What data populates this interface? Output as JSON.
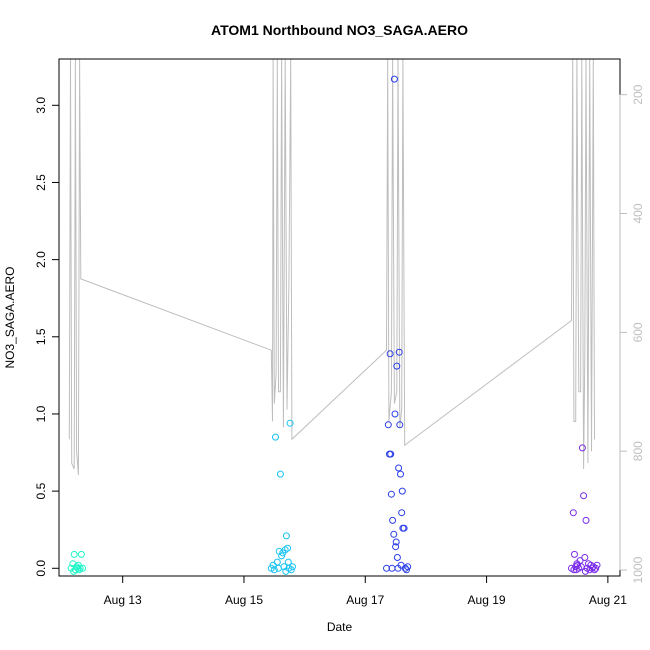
{
  "chart_data": {
    "type": "scatter",
    "title": "ATOM1 Northbound NO3_SAGA.AERO",
    "xlabel": "Date",
    "ylabel": "NO3_SAGA.AERO",
    "x_unit": "day of August",
    "xlim": [
      11.95,
      21.2
    ],
    "ylim": [
      -0.05,
      3.3
    ],
    "x_ticks": [
      {
        "value": 13,
        "label": "Aug 13"
      },
      {
        "value": 15,
        "label": "Aug 15"
      },
      {
        "value": 17,
        "label": "Aug 17"
      },
      {
        "value": 19,
        "label": "Aug 19"
      },
      {
        "value": 21,
        "label": "Aug 21"
      }
    ],
    "y_ticks": [
      {
        "value": 0.0,
        "label": "0.0"
      },
      {
        "value": 0.5,
        "label": "0.5"
      },
      {
        "value": 1.0,
        "label": "1.0"
      },
      {
        "value": 1.5,
        "label": "1.5"
      },
      {
        "value": 2.0,
        "label": "2.0"
      },
      {
        "value": 2.5,
        "label": "2.5"
      },
      {
        "value": 3.0,
        "label": "3.0"
      }
    ],
    "y2lim": [
      1010,
      140
    ],
    "y2_ticks": [
      {
        "value": 200,
        "label": "200"
      },
      {
        "value": 400,
        "label": "400"
      },
      {
        "value": 600,
        "label": "600"
      },
      {
        "value": 800,
        "label": "800"
      },
      {
        "value": 1000,
        "label": "1000"
      }
    ],
    "secondary_line_color": "#bebebe",
    "grid": false,
    "legend": "none",
    "series": [
      {
        "color": "#1cf5c8",
        "points": [
          [
            12.15,
            0.0
          ],
          [
            12.18,
            0.03
          ],
          [
            12.2,
            0.09
          ],
          [
            12.22,
            -0.01
          ],
          [
            12.24,
            0.01
          ],
          [
            12.26,
            0.0
          ],
          [
            12.28,
            -0.01
          ],
          [
            12.3,
            0.0
          ],
          [
            12.32,
            0.09
          ],
          [
            12.34,
            0.0
          ],
          [
            12.19,
            -0.02
          ],
          [
            12.27,
            0.02
          ]
        ]
      },
      {
        "color": "#17c3f2",
        "points": [
          [
            15.45,
            0.0
          ],
          [
            15.48,
            0.02
          ],
          [
            15.52,
            0.85
          ],
          [
            15.55,
            0.04
          ],
          [
            15.58,
            0.11
          ],
          [
            15.6,
            0.61
          ],
          [
            15.62,
            0.08
          ],
          [
            15.64,
            0.1
          ],
          [
            15.66,
            0.01
          ],
          [
            15.68,
            0.12
          ],
          [
            15.7,
            0.21
          ],
          [
            15.72,
            0.13
          ],
          [
            15.74,
            0.0
          ],
          [
            15.76,
            0.94
          ],
          [
            15.78,
            -0.01
          ],
          [
            15.8,
            0.01
          ],
          [
            15.5,
            -0.01
          ],
          [
            15.57,
            0.0
          ],
          [
            15.69,
            -0.02
          ],
          [
            15.73,
            0.04
          ]
        ]
      },
      {
        "color": "#2a3ee8",
        "points": [
          [
            17.35,
            0.0
          ],
          [
            17.38,
            0.93
          ],
          [
            17.4,
            0.74
          ],
          [
            17.41,
            1.39
          ],
          [
            17.42,
            0.74
          ],
          [
            17.43,
            0.48
          ],
          [
            17.45,
            0.31
          ],
          [
            17.47,
            0.22
          ],
          [
            17.48,
            3.17
          ],
          [
            17.49,
            1.0
          ],
          [
            17.5,
            0.14
          ],
          [
            17.51,
            0.17
          ],
          [
            17.52,
            1.31
          ],
          [
            17.53,
            0.07
          ],
          [
            17.54,
            0.0
          ],
          [
            17.55,
            0.65
          ],
          [
            17.56,
            1.4
          ],
          [
            17.57,
            0.93
          ],
          [
            17.58,
            0.61
          ],
          [
            17.6,
            0.36
          ],
          [
            17.61,
            0.5
          ],
          [
            17.62,
            0.26
          ],
          [
            17.64,
            0.26
          ],
          [
            17.66,
            0.0
          ],
          [
            17.68,
            -0.01
          ],
          [
            17.7,
            0.01
          ],
          [
            17.44,
            0.0
          ],
          [
            17.59,
            0.02
          ]
        ]
      },
      {
        "color": "#7a2ae8",
        "points": [
          [
            20.4,
            0.0
          ],
          [
            20.43,
            0.36
          ],
          [
            20.45,
            0.09
          ],
          [
            20.47,
            0.01
          ],
          [
            20.48,
            -0.01
          ],
          [
            20.5,
            0.02
          ],
          [
            20.52,
            0.0
          ],
          [
            20.54,
            0.05
          ],
          [
            20.56,
            0.01
          ],
          [
            20.58,
            0.78
          ],
          [
            20.6,
            0.47
          ],
          [
            20.62,
            0.07
          ],
          [
            20.64,
            0.31
          ],
          [
            20.66,
            0.0
          ],
          [
            20.68,
            0.03
          ],
          [
            20.7,
            -0.01
          ],
          [
            20.72,
            0.02
          ],
          [
            20.74,
            0.0
          ],
          [
            20.76,
            0.01
          ],
          [
            20.78,
            -0.01
          ],
          [
            20.8,
            0.0
          ],
          [
            20.82,
            0.02
          ],
          [
            20.44,
            -0.01
          ],
          [
            20.49,
            0.03
          ],
          [
            20.63,
            -0.02
          ]
        ]
      }
    ],
    "secondary_line": [
      [
        12.12,
        780
      ],
      [
        12.14,
        140
      ],
      [
        12.16,
        820
      ],
      [
        12.2,
        830
      ],
      [
        12.22,
        140
      ],
      [
        12.24,
        800
      ],
      [
        12.27,
        840
      ],
      [
        12.29,
        140
      ],
      [
        12.31,
        510
      ],
      [
        15.45,
        630
      ],
      [
        15.47,
        750
      ],
      [
        15.48,
        140
      ],
      [
        15.5,
        720
      ],
      [
        15.53,
        670
      ],
      [
        15.55,
        140
      ],
      [
        15.57,
        700
      ],
      [
        15.6,
        700
      ],
      [
        15.62,
        140
      ],
      [
        15.65,
        760
      ],
      [
        15.68,
        140
      ],
      [
        15.71,
        730
      ],
      [
        15.74,
        520
      ],
      [
        15.77,
        140
      ],
      [
        15.79,
        780
      ],
      [
        17.35,
        630
      ],
      [
        17.37,
        140
      ],
      [
        17.39,
        750
      ],
      [
        17.43,
        700
      ],
      [
        17.45,
        140
      ],
      [
        17.48,
        720
      ],
      [
        17.52,
        700
      ],
      [
        17.54,
        140
      ],
      [
        17.57,
        760
      ],
      [
        17.6,
        730
      ],
      [
        17.62,
        140
      ],
      [
        17.65,
        790
      ],
      [
        20.4,
        580
      ],
      [
        20.42,
        140
      ],
      [
        20.44,
        750
      ],
      [
        20.47,
        750
      ],
      [
        20.49,
        140
      ],
      [
        20.52,
        700
      ],
      [
        20.55,
        700
      ],
      [
        20.57,
        140
      ],
      [
        20.6,
        830
      ],
      [
        20.62,
        640
      ],
      [
        20.64,
        140
      ],
      [
        20.67,
        820
      ],
      [
        20.7,
        140
      ],
      [
        20.73,
        800
      ],
      [
        20.76,
        140
      ],
      [
        20.78,
        780
      ]
    ]
  }
}
